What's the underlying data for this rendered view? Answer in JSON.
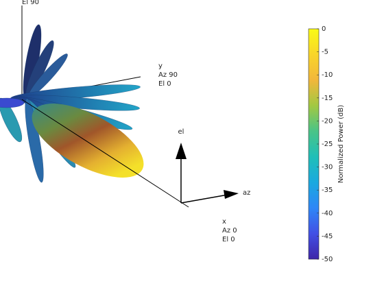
{
  "chart_data": {
    "type": "pattern3d",
    "z_axis_text": [
      "El 90"
    ],
    "y_axis_text": [
      "y",
      "Az 90",
      "El 0"
    ],
    "x_axis_text": [
      "x",
      "Az 0",
      "El 0"
    ],
    "local_axes": [
      "el",
      "az"
    ],
    "colorbar": {
      "label": "Normalized Power (dB)",
      "lim": [
        -50,
        0
      ],
      "ticks": [
        0,
        -5,
        -10,
        -15,
        -20,
        -25,
        -30,
        -35,
        -40,
        -45,
        -50
      ],
      "colors": [
        "#3e26a8",
        "#4250e5",
        "#2e87f7",
        "#1aa9df",
        "#1fbfb8",
        "#4ac487",
        "#a2c842",
        "#f2b73b",
        "#f9d52a",
        "#f9fb15"
      ]
    }
  }
}
